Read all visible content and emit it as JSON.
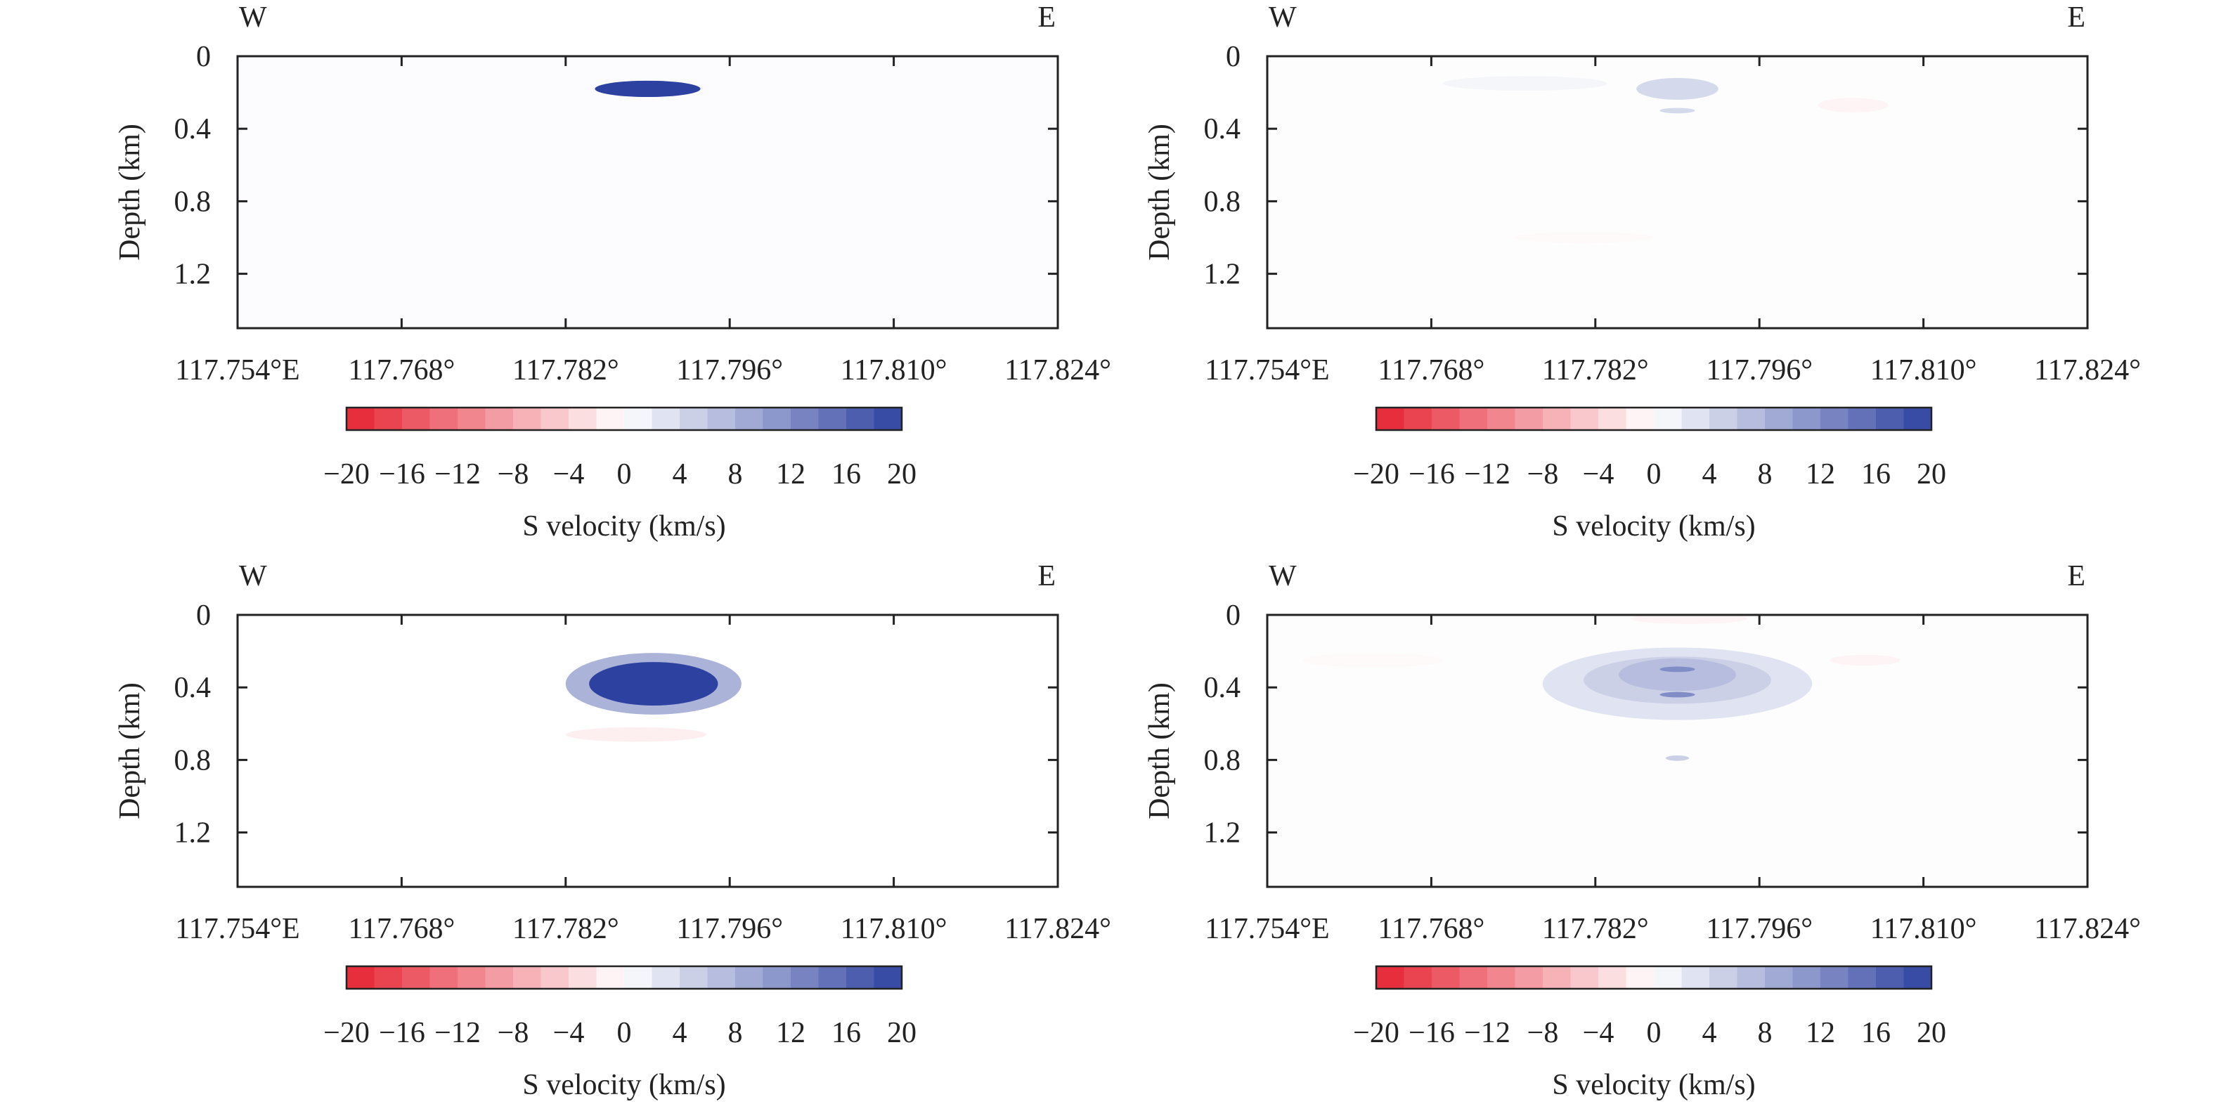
{
  "chart_data": [
    {
      "type": "heatmap",
      "title": "",
      "direction_labels": {
        "left": "W",
        "right": "E"
      },
      "xlabel": "",
      "ylabel": "Depth (km)",
      "xlim": [
        117.754,
        117.824
      ],
      "ylim": [
        1.5,
        0
      ],
      "x_ticks": [
        117.754,
        117.768,
        117.782,
        117.796,
        117.81,
        117.824
      ],
      "x_tick_labels": [
        "117.754°E",
        "117.768°",
        "117.782°",
        "117.796°",
        "117.810°",
        "117.824°"
      ],
      "y_ticks": [
        0,
        0.4,
        0.8,
        1.2
      ],
      "y_tick_labels": [
        "0",
        "0.4",
        "0.8",
        "1.2"
      ],
      "background_value": 0.3,
      "anomalies": [
        {
          "x": 117.789,
          "y": 0.18,
          "x_half_width": 0.0045,
          "y_half_width": 0.045,
          "value": 20
        }
      ],
      "colorbar": {
        "ticks": [
          -20,
          -16,
          -12,
          -8,
          -4,
          0,
          4,
          8,
          12,
          16,
          20
        ],
        "tick_labels": [
          "−20",
          "−16",
          "−12",
          "−8",
          "−4",
          "0",
          "4",
          "8",
          "12",
          "16",
          "20"
        ],
        "label": "S velocity (km/s)"
      }
    },
    {
      "type": "heatmap",
      "title": "",
      "direction_labels": {
        "left": "W",
        "right": "E"
      },
      "xlabel": "",
      "ylabel": "Depth (km)",
      "xlim": [
        117.754,
        117.824
      ],
      "ylim": [
        1.5,
        0
      ],
      "x_ticks": [
        117.754,
        117.768,
        117.782,
        117.796,
        117.81,
        117.824
      ],
      "x_tick_labels": [
        "117.754°E",
        "117.768°",
        "117.782°",
        "117.796°",
        "117.810°",
        "117.824°"
      ],
      "y_ticks": [
        0,
        0.4,
        0.8,
        1.2
      ],
      "y_tick_labels": [
        "0",
        "0.4",
        "0.8",
        "1.2"
      ],
      "background_value": 0.2,
      "anomalies": [
        {
          "x": 117.789,
          "y": 0.18,
          "x_half_width": 0.0035,
          "y_half_width": 0.06,
          "value": 4
        },
        {
          "x": 117.789,
          "y": 0.3,
          "x_half_width": 0.0015,
          "y_half_width": 0.015,
          "value": 4
        },
        {
          "x": 117.804,
          "y": 0.27,
          "x_half_width": 0.003,
          "y_half_width": 0.04,
          "value": -1
        },
        {
          "x": 117.776,
          "y": 0.15,
          "x_half_width": 0.007,
          "y_half_width": 0.04,
          "value": 1
        },
        {
          "x": 117.781,
          "y": 1.0,
          "x_half_width": 0.006,
          "y_half_width": 0.03,
          "value": -0.5
        }
      ],
      "colorbar": {
        "ticks": [
          -20,
          -16,
          -12,
          -8,
          -4,
          0,
          4,
          8,
          12,
          16,
          20
        ],
        "tick_labels": [
          "−20",
          "−16",
          "−12",
          "−8",
          "−4",
          "0",
          "4",
          "8",
          "12",
          "16",
          "20"
        ],
        "label": "S velocity (km/s)"
      }
    },
    {
      "type": "heatmap",
      "title": "",
      "direction_labels": {
        "left": "W",
        "right": "E"
      },
      "xlabel": "",
      "ylabel": "Depth (km)",
      "xlim": [
        117.754,
        117.824
      ],
      "ylim": [
        1.5,
        0
      ],
      "x_ticks": [
        117.754,
        117.768,
        117.782,
        117.796,
        117.81,
        117.824
      ],
      "x_tick_labels": [
        "117.754°E",
        "117.768°",
        "117.782°",
        "117.796°",
        "117.810°",
        "117.824°"
      ],
      "y_ticks": [
        0,
        0.4,
        0.8,
        1.2
      ],
      "y_tick_labels": [
        "0",
        "0.4",
        "0.8",
        "1.2"
      ],
      "background_value": 0,
      "anomalies": [
        {
          "x": 117.7895,
          "y": 0.38,
          "x_half_width": 0.0075,
          "y_half_width": 0.17,
          "value": 8
        },
        {
          "x": 117.7895,
          "y": 0.38,
          "x_half_width": 0.0055,
          "y_half_width": 0.12,
          "value": 20
        },
        {
          "x": 117.788,
          "y": 0.66,
          "x_half_width": 0.006,
          "y_half_width": 0.04,
          "value": -1.5
        }
      ],
      "colorbar": {
        "ticks": [
          -20,
          -16,
          -12,
          -8,
          -4,
          0,
          4,
          8,
          12,
          16,
          20
        ],
        "tick_labels": [
          "−20",
          "−16",
          "−12",
          "−8",
          "−4",
          "0",
          "4",
          "8",
          "12",
          "16",
          "20"
        ],
        "label": "S velocity (km/s)"
      }
    },
    {
      "type": "heatmap",
      "title": "",
      "direction_labels": {
        "left": "W",
        "right": "E"
      },
      "xlabel": "",
      "ylabel": "Depth (km)",
      "xlim": [
        117.754,
        117.824
      ],
      "ylim": [
        1.5,
        0
      ],
      "x_ticks": [
        117.754,
        117.768,
        117.782,
        117.796,
        117.81,
        117.824
      ],
      "x_tick_labels": [
        "117.754°E",
        "117.768°",
        "117.782°",
        "117.796°",
        "117.810°",
        "117.824°"
      ],
      "y_ticks": [
        0,
        0.4,
        0.8,
        1.2
      ],
      "y_tick_labels": [
        "0",
        "0.4",
        "0.8",
        "1.2"
      ],
      "background_value": 0.2,
      "anomalies": [
        {
          "x": 117.789,
          "y": 0.38,
          "x_half_width": 0.0115,
          "y_half_width": 0.2,
          "value": 3
        },
        {
          "x": 117.789,
          "y": 0.36,
          "x_half_width": 0.008,
          "y_half_width": 0.13,
          "value": 5
        },
        {
          "x": 117.789,
          "y": 0.33,
          "x_half_width": 0.005,
          "y_half_width": 0.09,
          "value": 7
        },
        {
          "x": 117.789,
          "y": 0.3,
          "x_half_width": 0.0015,
          "y_half_width": 0.015,
          "value": 12
        },
        {
          "x": 117.789,
          "y": 0.44,
          "x_half_width": 0.0015,
          "y_half_width": 0.015,
          "value": 12
        },
        {
          "x": 117.789,
          "y": 0.79,
          "x_half_width": 0.001,
          "y_half_width": 0.015,
          "value": 5
        },
        {
          "x": 117.79,
          "y": 0.02,
          "x_half_width": 0.005,
          "y_half_width": 0.03,
          "value": -1
        },
        {
          "x": 117.805,
          "y": 0.25,
          "x_half_width": 0.003,
          "y_half_width": 0.03,
          "value": -1
        },
        {
          "x": 117.763,
          "y": 0.25,
          "x_half_width": 0.006,
          "y_half_width": 0.04,
          "value": -0.5
        }
      ],
      "colorbar": {
        "ticks": [
          -20,
          -16,
          -12,
          -8,
          -4,
          0,
          4,
          8,
          12,
          16,
          20
        ],
        "tick_labels": [
          "−20",
          "−16",
          "−12",
          "−8",
          "−4",
          "0",
          "4",
          "8",
          "12",
          "16",
          "20"
        ],
        "label": "S velocity (km/s)"
      }
    }
  ]
}
